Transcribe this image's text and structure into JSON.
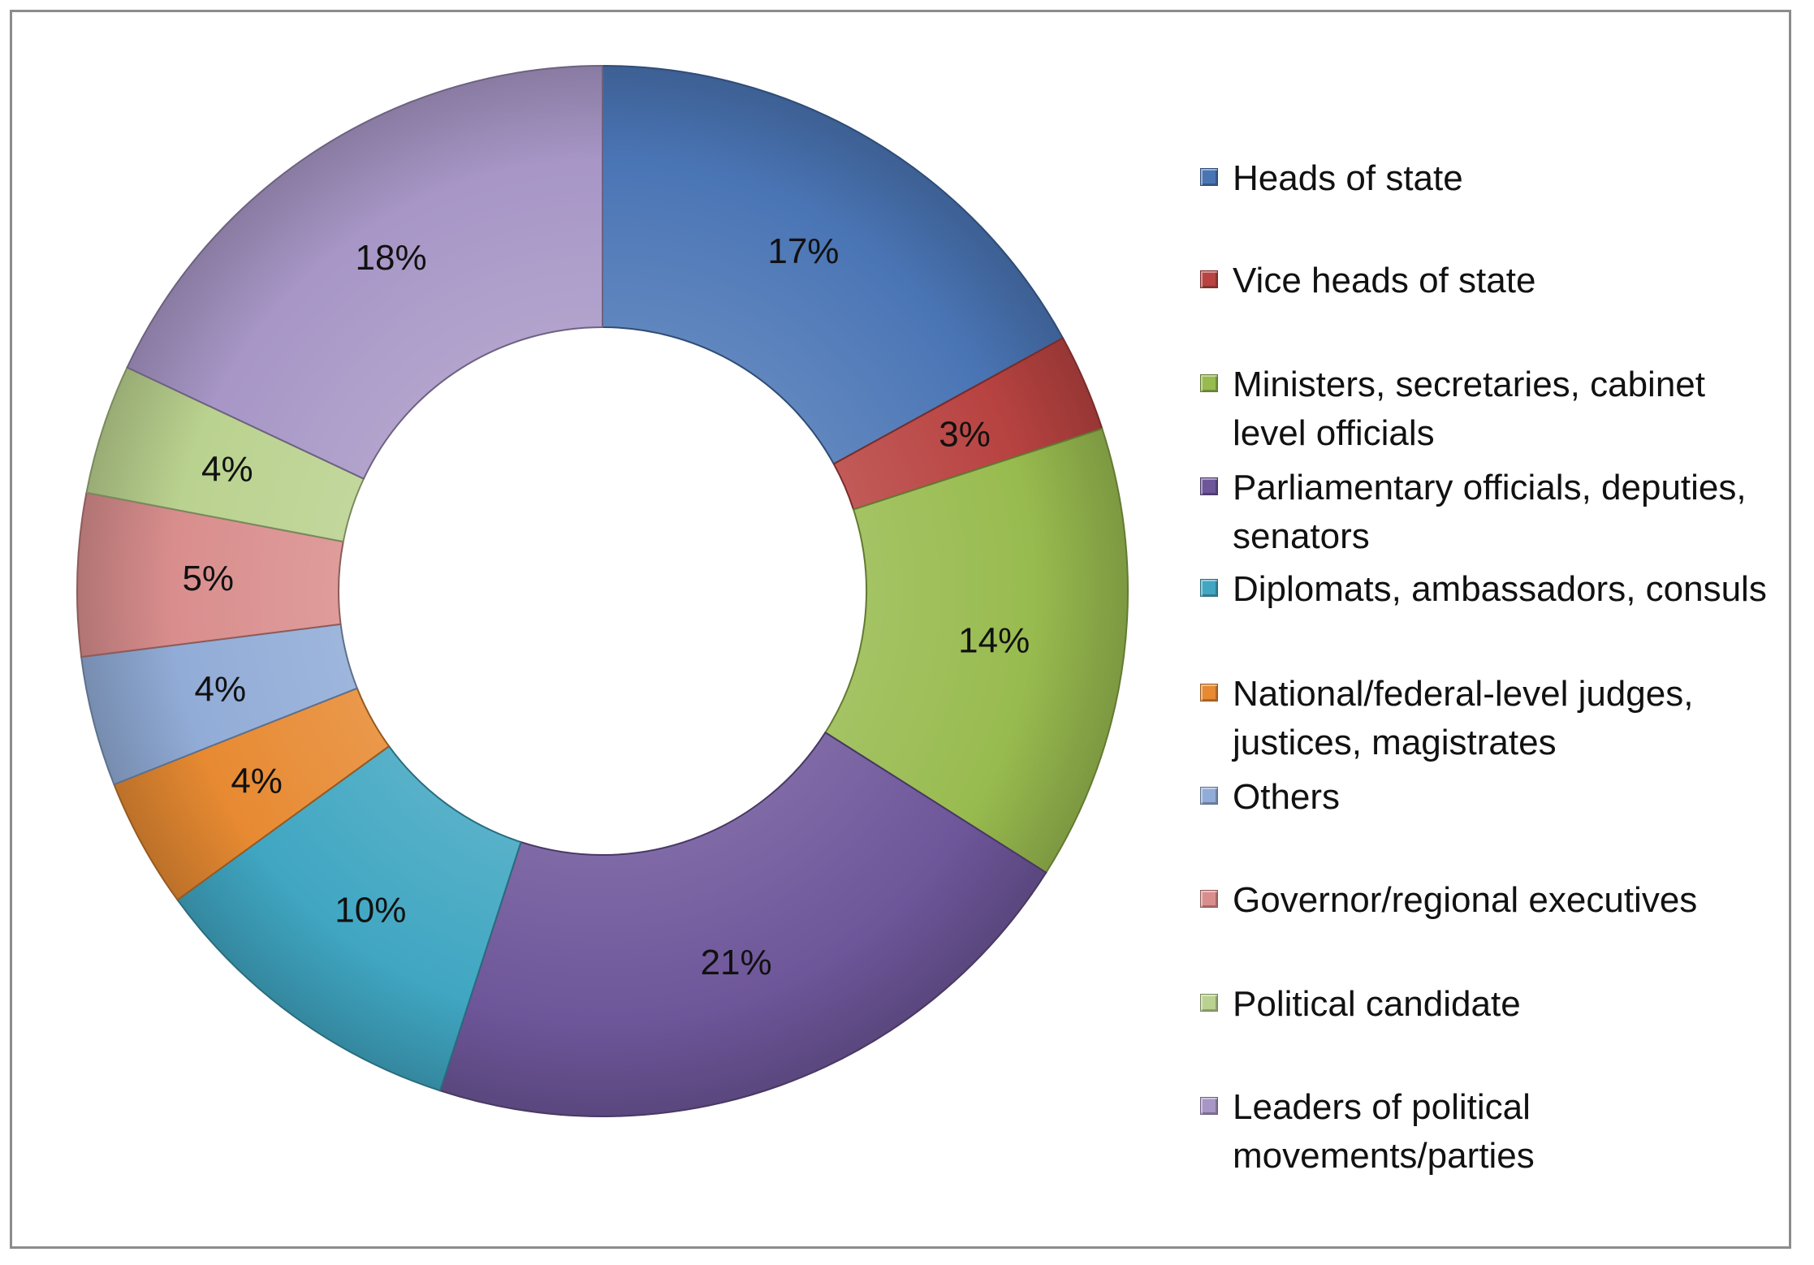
{
  "chart_data": {
    "type": "pie",
    "donut": true,
    "title": "",
    "legend_position": "right",
    "slices": [
      {
        "name": "Heads of state",
        "value": 17,
        "label": "17%",
        "color": "#4a75b5"
      },
      {
        "name": "Vice heads of state",
        "value": 3,
        "label": "3%",
        "color": "#b84341"
      },
      {
        "name": "Ministers, secretaries, cabinet level officials",
        "value": 14,
        "label": "14%",
        "color": "#98bb4f"
      },
      {
        "name": "Parliamentary officials, deputies, senators",
        "value": 21,
        "label": "21%",
        "color": "#6e569a"
      },
      {
        "name": "Diplomats, ambassadors, consuls",
        "value": 10,
        "label": "10%",
        "color": "#40a6c2"
      },
      {
        "name": "National/federal-level judges, justices, magistrates",
        "value": 4,
        "label": "4%",
        "color": "#e78a32"
      },
      {
        "name": "Others",
        "value": 4,
        "label": "4%",
        "color": "#91acd7"
      },
      {
        "name": "Governor/regional executives",
        "value": 5,
        "label": "5%",
        "color": "#d98e8d"
      },
      {
        "name": "Political candidate",
        "value": 4,
        "label": "4%",
        "color": "#bad28f"
      },
      {
        "name": "Leaders of political movements/parties",
        "value": 18,
        "label": "18%",
        "color": "#a796c6"
      }
    ]
  },
  "legend": {
    "items": [
      {
        "text": "Heads of state",
        "color": "#4a75b5"
      },
      {
        "text": "Vice heads of state",
        "color": "#b84341"
      },
      {
        "text": "Ministers, secretaries, cabinet\nlevel officials",
        "color": "#98bb4f"
      },
      {
        "text": "Parliamentary officials, deputies,\nsenators",
        "color": "#6e569a"
      },
      {
        "text": "Diplomats, ambassadors, consuls",
        "color": "#40a6c2"
      },
      {
        "text": "National/federal-level judges,\njustices, magistrates",
        "color": "#e78a32"
      },
      {
        "text": "Others",
        "color": "#91acd7"
      },
      {
        "text": "Governor/regional executives",
        "color": "#d98e8d"
      },
      {
        "text": "Political candidate",
        "color": "#bad28f"
      },
      {
        "text": "Leaders of political\nmovements/parties",
        "color": "#a796c6"
      }
    ]
  }
}
